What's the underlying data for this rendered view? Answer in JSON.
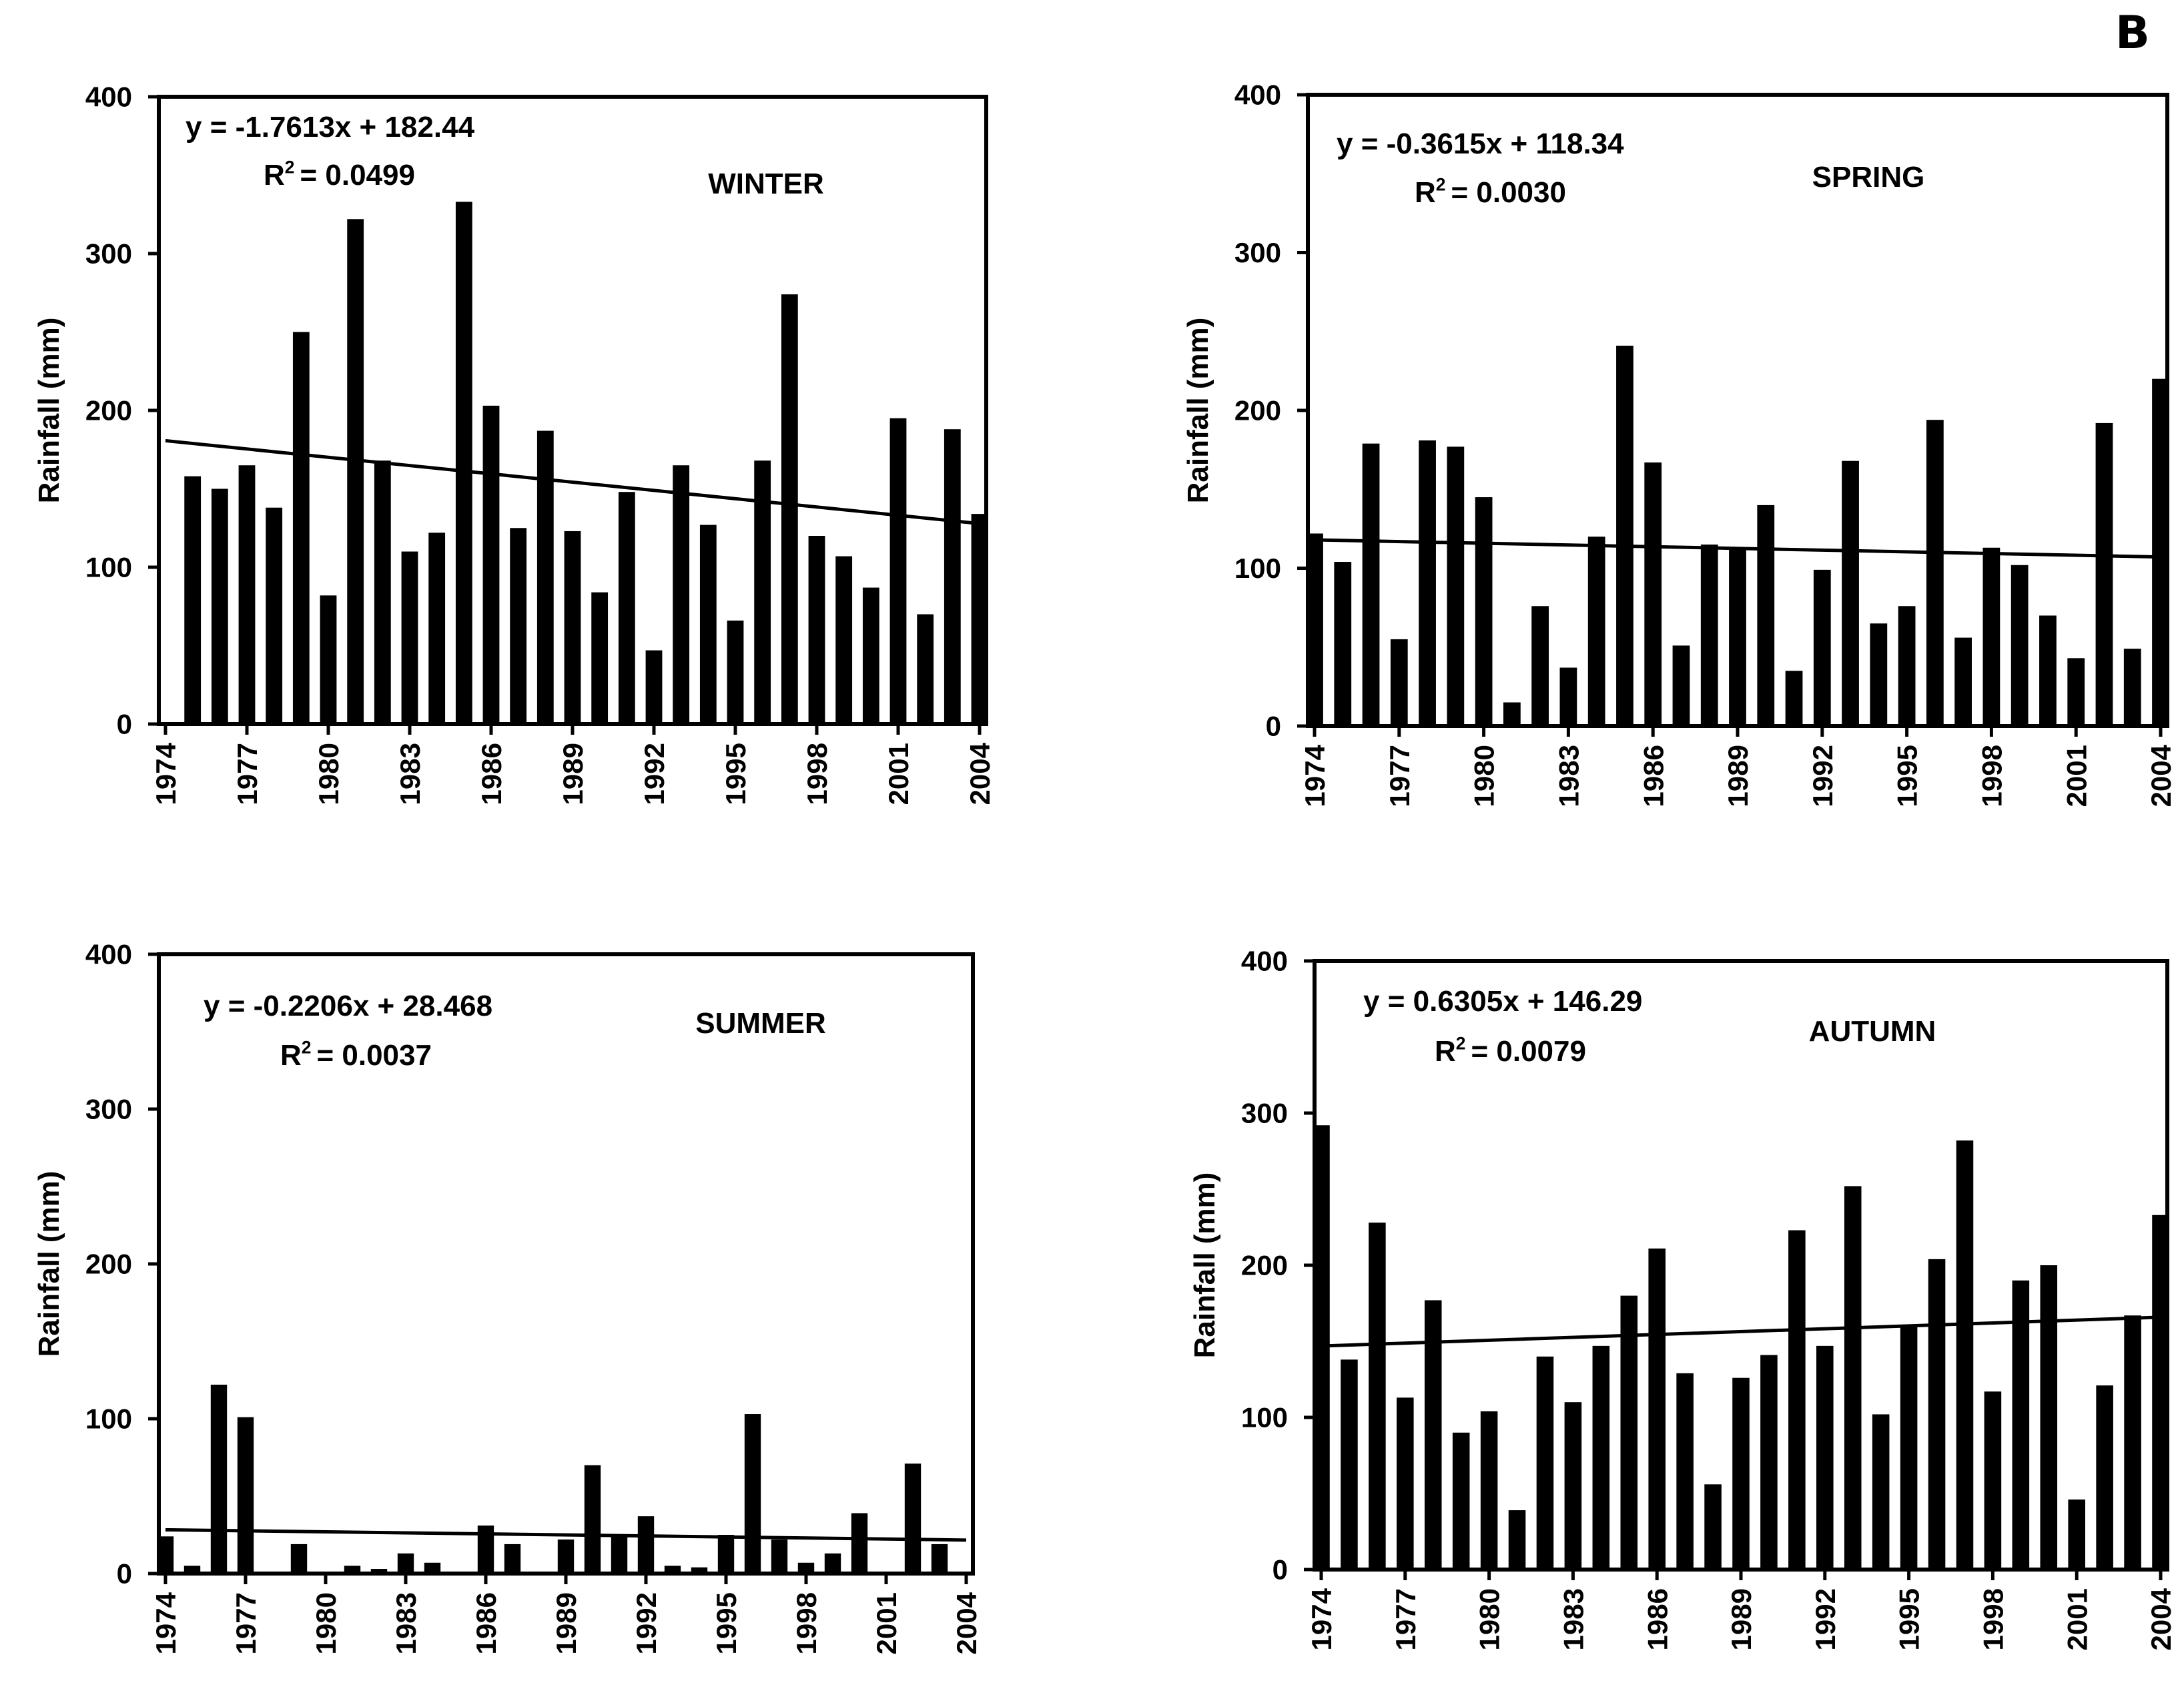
{
  "figure": {
    "panel_label": "B",
    "colors": {
      "bars": "#000000",
      "axes": "#000000",
      "background": "#ffffff"
    }
  },
  "chart_data": [
    {
      "type": "bar",
      "title": "WINTER",
      "ylabel": "Rainfall (mm)",
      "xlabel": "",
      "ylim": [
        0,
        400
      ],
      "yticks": [
        0,
        100,
        200,
        300,
        400
      ],
      "xtick_labels": [
        "1974",
        "1977",
        "1980",
        "1983",
        "1986",
        "1989",
        "1992",
        "1995",
        "1998",
        "2001",
        "2004"
      ],
      "years": [
        1975,
        1976,
        1977,
        1978,
        1979,
        1980,
        1981,
        1982,
        1983,
        1984,
        1985,
        1986,
        1987,
        1988,
        1989,
        1990,
        1991,
        1992,
        1993,
        1994,
        1995,
        1996,
        1997,
        1998,
        1999,
        2000,
        2001,
        2002,
        2003,
        2004
      ],
      "values": [
        158,
        150,
        165,
        138,
        250,
        82,
        322,
        168,
        110,
        122,
        333,
        203,
        125,
        187,
        123,
        84,
        148,
        47,
        165,
        127,
        66,
        168,
        274,
        120,
        107,
        87,
        195,
        70,
        188,
        134
      ],
      "trendline": {
        "equation": "y = -1.7613x + 182.44",
        "r2": "= 0.0499",
        "slope": -1.7613,
        "intercept": 182.44
      }
    },
    {
      "type": "bar",
      "title": "SPRING",
      "ylabel": "Rainfall (mm)",
      "xlabel": "",
      "ylim": [
        0,
        400
      ],
      "yticks": [
        0,
        100,
        200,
        300,
        400
      ],
      "xtick_labels": [
        "1974",
        "1977",
        "1980",
        "1983",
        "1986",
        "1989",
        "1992",
        "1995",
        "1998",
        "2001",
        "2004"
      ],
      "years": [
        1974,
        1975,
        1976,
        1977,
        1978,
        1979,
        1980,
        1981,
        1982,
        1983,
        1984,
        1985,
        1986,
        1987,
        1988,
        1989,
        1990,
        1991,
        1992,
        1993,
        1994,
        1995,
        1996,
        1997,
        1998,
        1999,
        2000,
        2001,
        2002,
        2003,
        2004
      ],
      "values": [
        122,
        104,
        179,
        55,
        181,
        177,
        145,
        15,
        76,
        37,
        120,
        241,
        167,
        51,
        115,
        112,
        140,
        35,
        99,
        168,
        65,
        76,
        194,
        56,
        113,
        102,
        70,
        43,
        192,
        49,
        220
      ],
      "trendline": {
        "equation": "y = -0.3615x + 118.34",
        "r2": "= 0.0030",
        "slope": -0.3615,
        "intercept": 118.34
      }
    },
    {
      "type": "bar",
      "title": "SUMMER",
      "ylabel": "Rainfall (mm)",
      "xlabel": "",
      "ylim": [
        0,
        400
      ],
      "yticks": [
        0,
        100,
        200,
        300,
        400
      ],
      "xtick_labels": [
        "1974",
        "1977",
        "1980",
        "1983",
        "1986",
        "1989",
        "1992",
        "1995",
        "1998",
        "2001",
        "2004"
      ],
      "years": [
        1974,
        1975,
        1976,
        1977,
        1978,
        1979,
        1980,
        1981,
        1982,
        1983,
        1984,
        1985,
        1986,
        1987,
        1988,
        1989,
        1990,
        1991,
        1992,
        1993,
        1994,
        1995,
        1996,
        1997,
        1998,
        1999,
        2000,
        2001,
        2002,
        2003,
        2004
      ],
      "values": [
        24,
        5,
        122,
        101,
        0,
        19,
        0,
        5,
        3,
        13,
        7,
        0,
        31,
        19,
        0,
        22,
        70,
        25,
        37,
        5,
        4,
        25,
        103,
        22,
        7,
        13,
        39,
        0,
        71,
        19,
        0
      ],
      "trendline": {
        "equation": "y = -0.2206x + 28.468",
        "r2": "= 0.0037",
        "slope": -0.2206,
        "intercept": 28.468
      }
    },
    {
      "type": "bar",
      "title": "AUTUMN",
      "ylabel": "Rainfall (mm)",
      "xlabel": "",
      "ylim": [
        0,
        400
      ],
      "yticks": [
        0,
        100,
        200,
        300,
        400
      ],
      "xtick_labels": [
        "1974",
        "1977",
        "1980",
        "1983",
        "1986",
        "1989",
        "1992",
        "1995",
        "1998",
        "2001",
        "2004"
      ],
      "years": [
        1974,
        1975,
        1976,
        1977,
        1978,
        1979,
        1980,
        1981,
        1982,
        1983,
        1984,
        1985,
        1986,
        1987,
        1988,
        1989,
        1990,
        1991,
        1992,
        1993,
        1994,
        1995,
        1996,
        1997,
        1998,
        1999,
        2000,
        2001,
        2002,
        2003,
        2004
      ],
      "values": [
        292,
        138,
        228,
        113,
        177,
        90,
        104,
        39,
        140,
        110,
        147,
        180,
        211,
        129,
        56,
        126,
        141,
        223,
        147,
        252,
        102,
        160,
        204,
        282,
        117,
        190,
        200,
        46,
        121,
        167,
        233
      ],
      "trendline": {
        "equation": "y = 0.6305x + 146.29",
        "r2": "= 0.0079",
        "slope": 0.6305,
        "intercept": 146.29
      }
    }
  ]
}
